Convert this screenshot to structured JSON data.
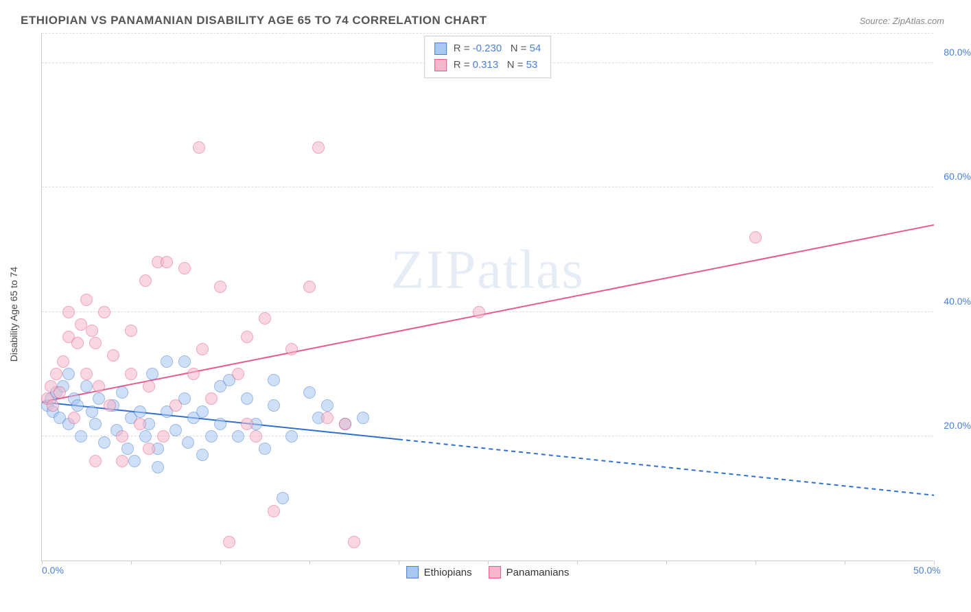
{
  "title": "ETHIOPIAN VS PANAMANIAN DISABILITY AGE 65 TO 74 CORRELATION CHART",
  "source": "Source: ZipAtlas.com",
  "ylabel": "Disability Age 65 to 74",
  "watermark": "ZIPatlas",
  "chart": {
    "type": "scatter",
    "xlim": [
      0,
      50
    ],
    "ylim": [
      0,
      85
    ],
    "xticks": [
      0,
      5,
      10,
      15,
      20,
      25,
      30,
      35,
      40,
      45,
      50
    ],
    "xtick_labels_shown": {
      "0": "0.0%",
      "50": "50.0%"
    },
    "ygrid": [
      20,
      40,
      60,
      80
    ],
    "ytick_labels": {
      "20": "20.0%",
      "40": "40.0%",
      "60": "60.0%",
      "80": "80.0%"
    },
    "background_color": "#ffffff",
    "grid_color": "#dddddd",
    "marker_radius": 9,
    "marker_opacity": 0.55,
    "series": [
      {
        "name": "Ethiopians",
        "color_fill": "#a8c8f0",
        "color_stroke": "#4a7fd8",
        "R": "-0.230",
        "N": "54",
        "trend": {
          "x1": 0,
          "y1": 25.5,
          "x2_solid": 20,
          "y2_solid": 19.5,
          "x2_dash": 50,
          "y2_dash": 10.5,
          "color": "#2f6fd0",
          "width": 2
        },
        "points": [
          [
            0.3,
            25
          ],
          [
            0.5,
            26
          ],
          [
            0.6,
            24
          ],
          [
            0.8,
            27
          ],
          [
            1.0,
            23
          ],
          [
            1.2,
            28
          ],
          [
            1.5,
            22
          ],
          [
            1.5,
            30
          ],
          [
            1.8,
            26
          ],
          [
            2.0,
            25
          ],
          [
            2.2,
            20
          ],
          [
            2.5,
            28
          ],
          [
            2.8,
            24
          ],
          [
            3.0,
            22
          ],
          [
            3.2,
            26
          ],
          [
            3.5,
            19
          ],
          [
            4.0,
            25
          ],
          [
            4.2,
            21
          ],
          [
            4.5,
            27
          ],
          [
            4.8,
            18
          ],
          [
            5.0,
            23
          ],
          [
            5.2,
            16
          ],
          [
            5.5,
            24
          ],
          [
            5.8,
            20
          ],
          [
            6.0,
            22
          ],
          [
            6.2,
            30
          ],
          [
            6.5,
            18
          ],
          [
            6.5,
            15
          ],
          [
            7.0,
            24
          ],
          [
            7.0,
            32
          ],
          [
            7.5,
            21
          ],
          [
            8.0,
            26
          ],
          [
            8.2,
            19
          ],
          [
            8.5,
            23
          ],
          [
            9.0,
            24
          ],
          [
            9.0,
            17
          ],
          [
            9.5,
            20
          ],
          [
            10.0,
            28
          ],
          [
            10.0,
            22
          ],
          [
            10.5,
            29
          ],
          [
            11.0,
            20
          ],
          [
            11.5,
            26
          ],
          [
            12.0,
            22
          ],
          [
            12.5,
            18
          ],
          [
            13.0,
            25
          ],
          [
            13.5,
            10
          ],
          [
            14.0,
            20
          ],
          [
            15.0,
            27
          ],
          [
            15.5,
            23
          ],
          [
            16.0,
            25
          ],
          [
            17.0,
            22
          ],
          [
            18.0,
            23
          ],
          [
            13.0,
            29
          ],
          [
            8.0,
            32
          ]
        ]
      },
      {
        "name": "Panamanians",
        "color_fill": "#f5b8ca",
        "color_stroke": "#e85a8a",
        "R": "0.313",
        "N": "53",
        "trend": {
          "x1": 0,
          "y1": 25.5,
          "x2_solid": 50,
          "y2_solid": 54,
          "color": "#e85a8a",
          "width": 2
        },
        "points": [
          [
            0.3,
            26
          ],
          [
            0.5,
            28
          ],
          [
            0.6,
            25
          ],
          [
            0.8,
            30
          ],
          [
            1.0,
            27
          ],
          [
            1.2,
            32
          ],
          [
            1.5,
            36
          ],
          [
            1.5,
            40
          ],
          [
            1.8,
            23
          ],
          [
            2.0,
            35
          ],
          [
            2.2,
            38
          ],
          [
            2.5,
            30
          ],
          [
            2.5,
            42
          ],
          [
            2.8,
            37
          ],
          [
            3.0,
            35
          ],
          [
            3.2,
            28
          ],
          [
            3.5,
            40
          ],
          [
            3.8,
            25
          ],
          [
            4.0,
            33
          ],
          [
            4.5,
            20
          ],
          [
            5.0,
            37
          ],
          [
            5.0,
            30
          ],
          [
            5.5,
            22
          ],
          [
            5.8,
            45
          ],
          [
            6.0,
            28
          ],
          [
            6.5,
            48
          ],
          [
            6.8,
            20
          ],
          [
            7.0,
            48
          ],
          [
            7.5,
            25
          ],
          [
            8.0,
            47
          ],
          [
            8.5,
            30
          ],
          [
            8.8,
            66.5
          ],
          [
            9.0,
            34
          ],
          [
            9.5,
            26
          ],
          [
            10.0,
            44
          ],
          [
            10.5,
            3
          ],
          [
            11.0,
            30
          ],
          [
            11.5,
            22
          ],
          [
            11.5,
            36
          ],
          [
            12.0,
            20
          ],
          [
            12.5,
            39
          ],
          [
            13.0,
            8
          ],
          [
            14.0,
            34
          ],
          [
            15.0,
            44
          ],
          [
            15.5,
            66.5
          ],
          [
            16.0,
            23
          ],
          [
            17.0,
            22
          ],
          [
            17.5,
            3
          ],
          [
            24.5,
            40
          ],
          [
            40.0,
            52
          ],
          [
            3.0,
            16
          ],
          [
            6.0,
            18
          ],
          [
            4.5,
            16
          ]
        ]
      }
    ]
  },
  "legend_bottom": [
    {
      "label": "Ethiopians",
      "fill": "#a8c8f0",
      "stroke": "#4a7fd8"
    },
    {
      "label": "Panamanians",
      "fill": "#f5b8ca",
      "stroke": "#e85a8a"
    }
  ],
  "legend_top_text_color": "#4a7fd8"
}
